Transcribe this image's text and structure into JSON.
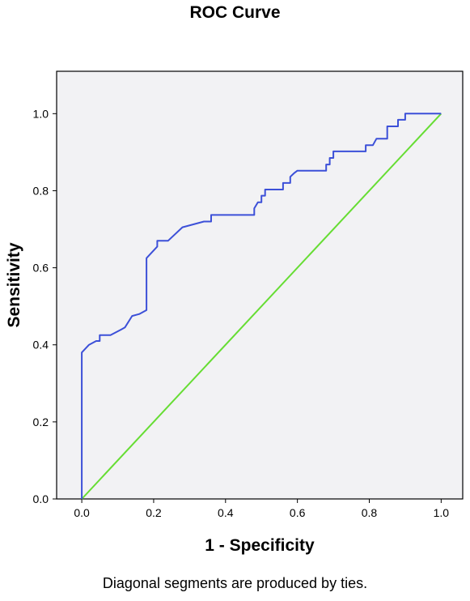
{
  "chart_data": {
    "type": "line",
    "title": "ROC Curve",
    "xlabel": "1 - Specificity",
    "ylabel": "Sensitivity",
    "footnote": "Diagonal segments are produced by ties.",
    "xlim": [
      -0.07,
      1.06
    ],
    "ylim": [
      0.0,
      1.11
    ],
    "x_ticks": [
      "0.0",
      "0.2",
      "0.4",
      "0.6",
      "0.8",
      "1.0"
    ],
    "y_ticks": [
      "0.0",
      "0.2",
      "0.4",
      "0.6",
      "0.8",
      "1.0"
    ],
    "grid": false,
    "background": "#f2f2f4",
    "series": [
      {
        "color": "#3c50d8",
        "x": [
          0.0,
          0.0,
          0.02,
          0.04,
          0.05,
          0.05,
          0.08,
          0.11,
          0.12,
          0.14,
          0.16,
          0.18,
          0.18,
          0.21,
          0.21,
          0.24,
          0.28,
          0.34,
          0.36,
          0.36,
          0.48,
          0.48,
          0.49,
          0.5,
          0.5,
          0.51,
          0.51,
          0.56,
          0.56,
          0.58,
          0.58,
          0.59,
          0.6,
          0.68,
          0.68,
          0.69,
          0.69,
          0.7,
          0.7,
          0.79,
          0.79,
          0.81,
          0.82,
          0.85,
          0.85,
          0.88,
          0.88,
          0.9,
          0.9,
          1.0
        ],
        "y": [
          0.0,
          0.38,
          0.4,
          0.41,
          0.41,
          0.425,
          0.425,
          0.44,
          0.445,
          0.475,
          0.48,
          0.49,
          0.625,
          0.655,
          0.67,
          0.67,
          0.705,
          0.72,
          0.72,
          0.737,
          0.737,
          0.754,
          0.77,
          0.77,
          0.787,
          0.787,
          0.803,
          0.803,
          0.82,
          0.82,
          0.836,
          0.845,
          0.852,
          0.852,
          0.868,
          0.868,
          0.885,
          0.885,
          0.902,
          0.902,
          0.918,
          0.918,
          0.935,
          0.935,
          0.967,
          0.967,
          0.984,
          0.984,
          1.0,
          1.0
        ]
      },
      {
        "color": "#66dd33",
        "x": [
          0.0,
          1.0
        ],
        "y": [
          0.0,
          1.0
        ]
      }
    ]
  }
}
